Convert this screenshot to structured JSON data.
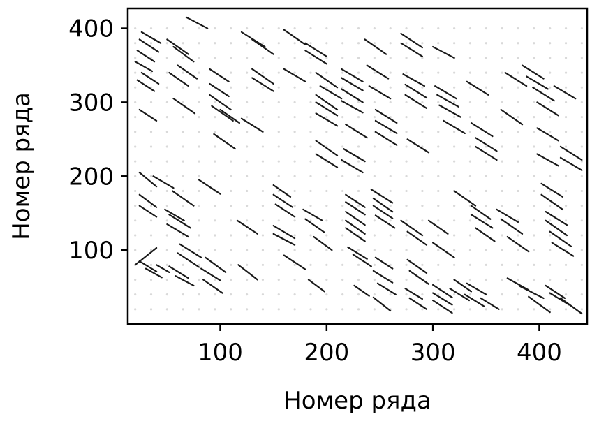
{
  "chart_data": {
    "type": "scatter",
    "title": "",
    "xlabel": "Номер ряда",
    "ylabel": "Номер ряда",
    "xlim": [
      13,
      445
    ],
    "ylim": [
      0,
      427
    ],
    "xticks": [
      100,
      200,
      300,
      400
    ],
    "yticks": [
      100,
      200,
      300,
      400
    ],
    "grid": false,
    "colors": {
      "segments": "#1a1a1a",
      "background_points": "#d9d9d9",
      "frame": "#000000"
    },
    "segments": [
      [
        40,
        80,
        52,
        70
      ],
      [
        20,
        80,
        40,
        103
      ],
      [
        24,
        85,
        40,
        71
      ],
      [
        30,
        75,
        45,
        63
      ],
      [
        52,
        78,
        70,
        62
      ],
      [
        58,
        65,
        75,
        52
      ],
      [
        60,
        96,
        80,
        77
      ],
      [
        62,
        108,
        82,
        90
      ],
      [
        82,
        75,
        100,
        59
      ],
      [
        86,
        90,
        105,
        70
      ],
      [
        84,
        60,
        102,
        42
      ],
      [
        117,
        80,
        135,
        60
      ],
      [
        160,
        93,
        180,
        74
      ],
      [
        183,
        60,
        198,
        44
      ],
      [
        188,
        118,
        205,
        100
      ],
      [
        220,
        104,
        238,
        88
      ],
      [
        225,
        94,
        242,
        78
      ],
      [
        226,
        52,
        240,
        38
      ],
      [
        246,
        90,
        262,
        75
      ],
      [
        244,
        72,
        262,
        56
      ],
      [
        248,
        55,
        265,
        40
      ],
      [
        244,
        36,
        260,
        18
      ],
      [
        276,
        87,
        294,
        69
      ],
      [
        278,
        72,
        296,
        54
      ],
      [
        274,
        48,
        290,
        34
      ],
      [
        278,
        35,
        294,
        20
      ],
      [
        300,
        53,
        318,
        36
      ],
      [
        300,
        42,
        318,
        26
      ],
      [
        300,
        32,
        318,
        15
      ],
      [
        320,
        60,
        336,
        44
      ],
      [
        316,
        48,
        334,
        32
      ],
      [
        332,
        55,
        350,
        40
      ],
      [
        330,
        40,
        348,
        24
      ],
      [
        345,
        35,
        362,
        20
      ],
      [
        370,
        62,
        390,
        46
      ],
      [
        382,
        51,
        404,
        35
      ],
      [
        406,
        52,
        424,
        35
      ],
      [
        410,
        42,
        428,
        26
      ],
      [
        390,
        37,
        410,
        16
      ],
      [
        420,
        35,
        440,
        14
      ],
      [
        24,
        175,
        40,
        158
      ],
      [
        24,
        205,
        40,
        186
      ],
      [
        24,
        160,
        40,
        145
      ],
      [
        37,
        200,
        56,
        184
      ],
      [
        48,
        155,
        66,
        140
      ],
      [
        52,
        148,
        72,
        130
      ],
      [
        50,
        135,
        70,
        118
      ],
      [
        55,
        180,
        75,
        160
      ],
      [
        80,
        195,
        100,
        176
      ],
      [
        116,
        140,
        135,
        122
      ],
      [
        150,
        188,
        166,
        172
      ],
      [
        150,
        175,
        168,
        158
      ],
      [
        152,
        162,
        170,
        145
      ],
      [
        150,
        133,
        170,
        116
      ],
      [
        150,
        122,
        170,
        107
      ],
      [
        178,
        155,
        196,
        140
      ],
      [
        180,
        142,
        198,
        124
      ],
      [
        218,
        175,
        236,
        158
      ],
      [
        218,
        165,
        236,
        148
      ],
      [
        218,
        152,
        236,
        134
      ],
      [
        218,
        140,
        236,
        122
      ],
      [
        218,
        130,
        236,
        112
      ],
      [
        242,
        182,
        262,
        164
      ],
      [
        244,
        170,
        262,
        152
      ],
      [
        244,
        160,
        262,
        143
      ],
      [
        246,
        147,
        264,
        130
      ],
      [
        270,
        140,
        290,
        120
      ],
      [
        276,
        125,
        294,
        107
      ],
      [
        296,
        140,
        314,
        122
      ],
      [
        300,
        110,
        320,
        90
      ],
      [
        320,
        180,
        340,
        160
      ],
      [
        336,
        160,
        354,
        142
      ],
      [
        336,
        148,
        356,
        130
      ],
      [
        340,
        130,
        358,
        112
      ],
      [
        360,
        155,
        380,
        138
      ],
      [
        364,
        142,
        384,
        122
      ],
      [
        370,
        118,
        390,
        98
      ],
      [
        402,
        190,
        422,
        172
      ],
      [
        402,
        175,
        422,
        155
      ],
      [
        406,
        152,
        426,
        134
      ],
      [
        406,
        140,
        426,
        120
      ],
      [
        410,
        125,
        430,
        105
      ],
      [
        412,
        110,
        432,
        92
      ],
      [
        20,
        355,
        36,
        342
      ],
      [
        22,
        370,
        38,
        355
      ],
      [
        24,
        385,
        42,
        368
      ],
      [
        26,
        395,
        44,
        380
      ],
      [
        22,
        330,
        38,
        315
      ],
      [
        26,
        340,
        42,
        325
      ],
      [
        24,
        290,
        40,
        275
      ],
      [
        50,
        385,
        70,
        365
      ],
      [
        56,
        375,
        75,
        355
      ],
      [
        52,
        340,
        70,
        322
      ],
      [
        60,
        350,
        78,
        332
      ],
      [
        56,
        305,
        76,
        285
      ],
      [
        68,
        415,
        88,
        400
      ],
      [
        90,
        345,
        108,
        328
      ],
      [
        90,
        325,
        108,
        308
      ],
      [
        90,
        310,
        110,
        290
      ],
      [
        92,
        295,
        112,
        275
      ],
      [
        100,
        290,
        118,
        272
      ],
      [
        94,
        257,
        114,
        237
      ],
      [
        120,
        395,
        142,
        375
      ],
      [
        130,
        385,
        150,
        365
      ],
      [
        130,
        345,
        150,
        325
      ],
      [
        130,
        333,
        150,
        315
      ],
      [
        120,
        278,
        140,
        260
      ],
      [
        160,
        398,
        180,
        378
      ],
      [
        160,
        345,
        180,
        328
      ],
      [
        180,
        380,
        200,
        362
      ],
      [
        180,
        370,
        200,
        352
      ],
      [
        190,
        340,
        210,
        320
      ],
      [
        194,
        322,
        214,
        305
      ],
      [
        190,
        310,
        210,
        290
      ],
      [
        190,
        300,
        210,
        282
      ],
      [
        190,
        285,
        210,
        268
      ],
      [
        190,
        248,
        210,
        228
      ],
      [
        190,
        230,
        210,
        212
      ],
      [
        214,
        345,
        234,
        328
      ],
      [
        214,
        333,
        234,
        316
      ],
      [
        214,
        318,
        234,
        300
      ],
      [
        214,
        302,
        234,
        286
      ],
      [
        218,
        270,
        238,
        252
      ],
      [
        216,
        237,
        236,
        220
      ],
      [
        214,
        222,
        234,
        205
      ],
      [
        236,
        385,
        256,
        365
      ],
      [
        238,
        350,
        258,
        332
      ],
      [
        240,
        322,
        260,
        305
      ],
      [
        246,
        290,
        266,
        272
      ],
      [
        246,
        275,
        266,
        258
      ],
      [
        246,
        260,
        266,
        242
      ],
      [
        270,
        393,
        290,
        374
      ],
      [
        270,
        380,
        290,
        362
      ],
      [
        272,
        338,
        292,
        322
      ],
      [
        274,
        324,
        294,
        306
      ],
      [
        274,
        310,
        294,
        292
      ],
      [
        276,
        250,
        296,
        232
      ],
      [
        300,
        375,
        320,
        360
      ],
      [
        302,
        322,
        322,
        305
      ],
      [
        304,
        310,
        324,
        294
      ],
      [
        306,
        296,
        326,
        280
      ],
      [
        310,
        275,
        330,
        258
      ],
      [
        332,
        328,
        352,
        310
      ],
      [
        336,
        272,
        356,
        254
      ],
      [
        340,
        252,
        360,
        234
      ],
      [
        340,
        240,
        360,
        222
      ],
      [
        368,
        340,
        388,
        322
      ],
      [
        364,
        290,
        384,
        270
      ],
      [
        384,
        350,
        404,
        332
      ],
      [
        388,
        335,
        408,
        318
      ],
      [
        394,
        320,
        414,
        302
      ],
      [
        398,
        300,
        418,
        282
      ],
      [
        398,
        265,
        418,
        248
      ],
      [
        414,
        322,
        434,
        305
      ],
      [
        420,
        240,
        440,
        222
      ],
      [
        420,
        225,
        440,
        208
      ],
      [
        398,
        230,
        418,
        214
      ]
    ]
  }
}
